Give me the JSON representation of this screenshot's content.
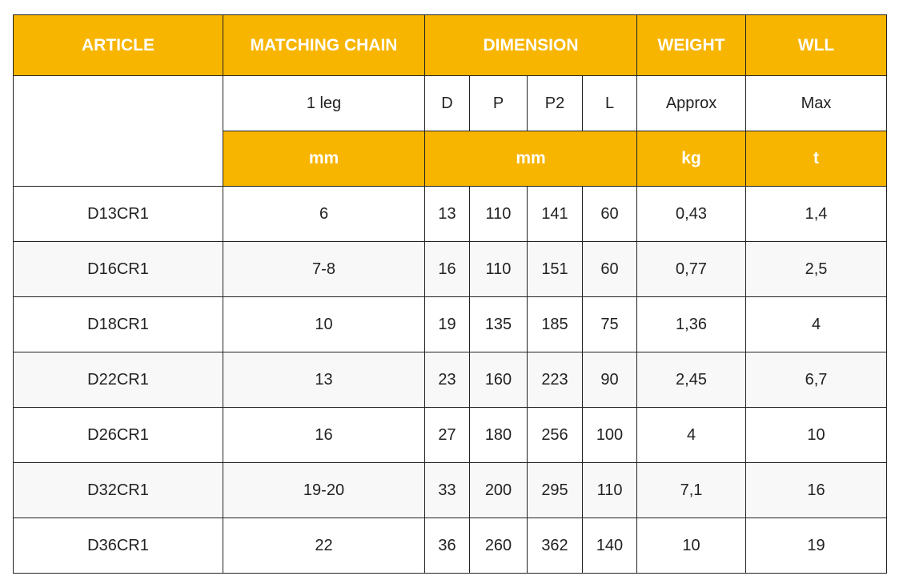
{
  "colors": {
    "header_bg": "#F7B500",
    "header_text": "#FFFFFF",
    "border": "#222222",
    "alt_row": "#F8F8F8"
  },
  "header": {
    "article": "ARTICLE",
    "matching_chain": "MATCHING CHAIN",
    "dimension": "DIMENSION",
    "weight": "WEIGHT",
    "wll": "WLL"
  },
  "subheader": {
    "leg": "1 leg",
    "d": "D",
    "p": "P",
    "p2": "P2",
    "l": "L",
    "approx": "Approx",
    "max": "Max"
  },
  "units": {
    "chain": "mm",
    "dimension": "mm",
    "weight": "kg",
    "wll": "t"
  },
  "rows": [
    [
      "D13CR1",
      "6",
      "13",
      "110",
      "141",
      "60",
      "0,43",
      "1,4"
    ],
    [
      "D16CR1",
      "7-8",
      "16",
      "110",
      "151",
      "60",
      "0,77",
      "2,5"
    ],
    [
      "D18CR1",
      "10",
      "19",
      "135",
      "185",
      "75",
      "1,36",
      "4"
    ],
    [
      "D22CR1",
      "13",
      "23",
      "160",
      "223",
      "90",
      "2,45",
      "6,7"
    ],
    [
      "D26CR1",
      "16",
      "27",
      "180",
      "256",
      "100",
      "4",
      "10"
    ],
    [
      "D32CR1",
      "19-20",
      "33",
      "200",
      "295",
      "110",
      "7,1",
      "16"
    ],
    [
      "D36CR1",
      "22",
      "36",
      "260",
      "362",
      "140",
      "10",
      "19"
    ]
  ]
}
